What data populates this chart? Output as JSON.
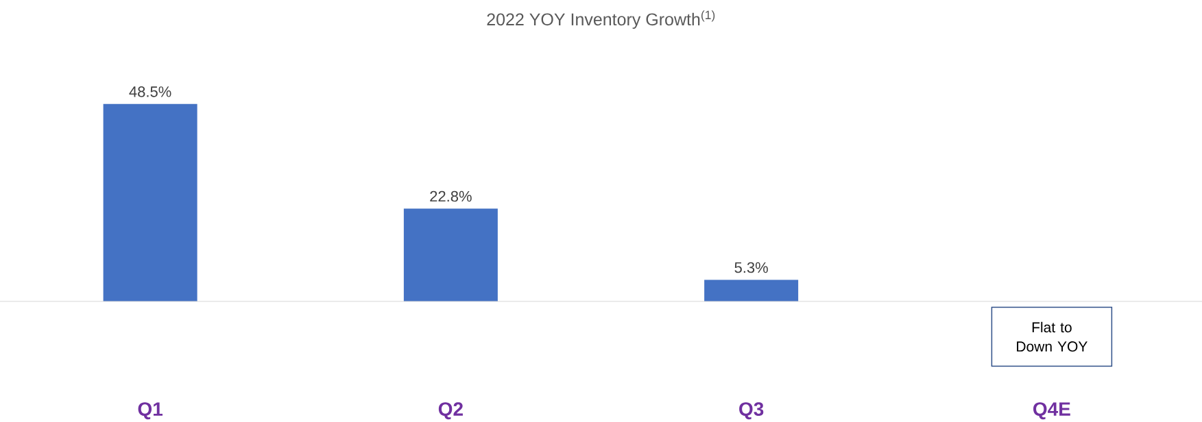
{
  "chart_data": {
    "type": "bar",
    "title": "2022 YOY Inventory Growth$^{(1)}$",
    "categories": [
      "Q1",
      "Q2",
      "Q3",
      "Q4E"
    ],
    "values": [
      48.5,
      22.8,
      5.3,
      null
    ],
    "value_labels": [
      "48.5%",
      "22.8%",
      "5.3%",
      null
    ],
    "color": "#4472c4",
    "annotations": [
      "Flat to Down YOY"
    ]
  }
}
